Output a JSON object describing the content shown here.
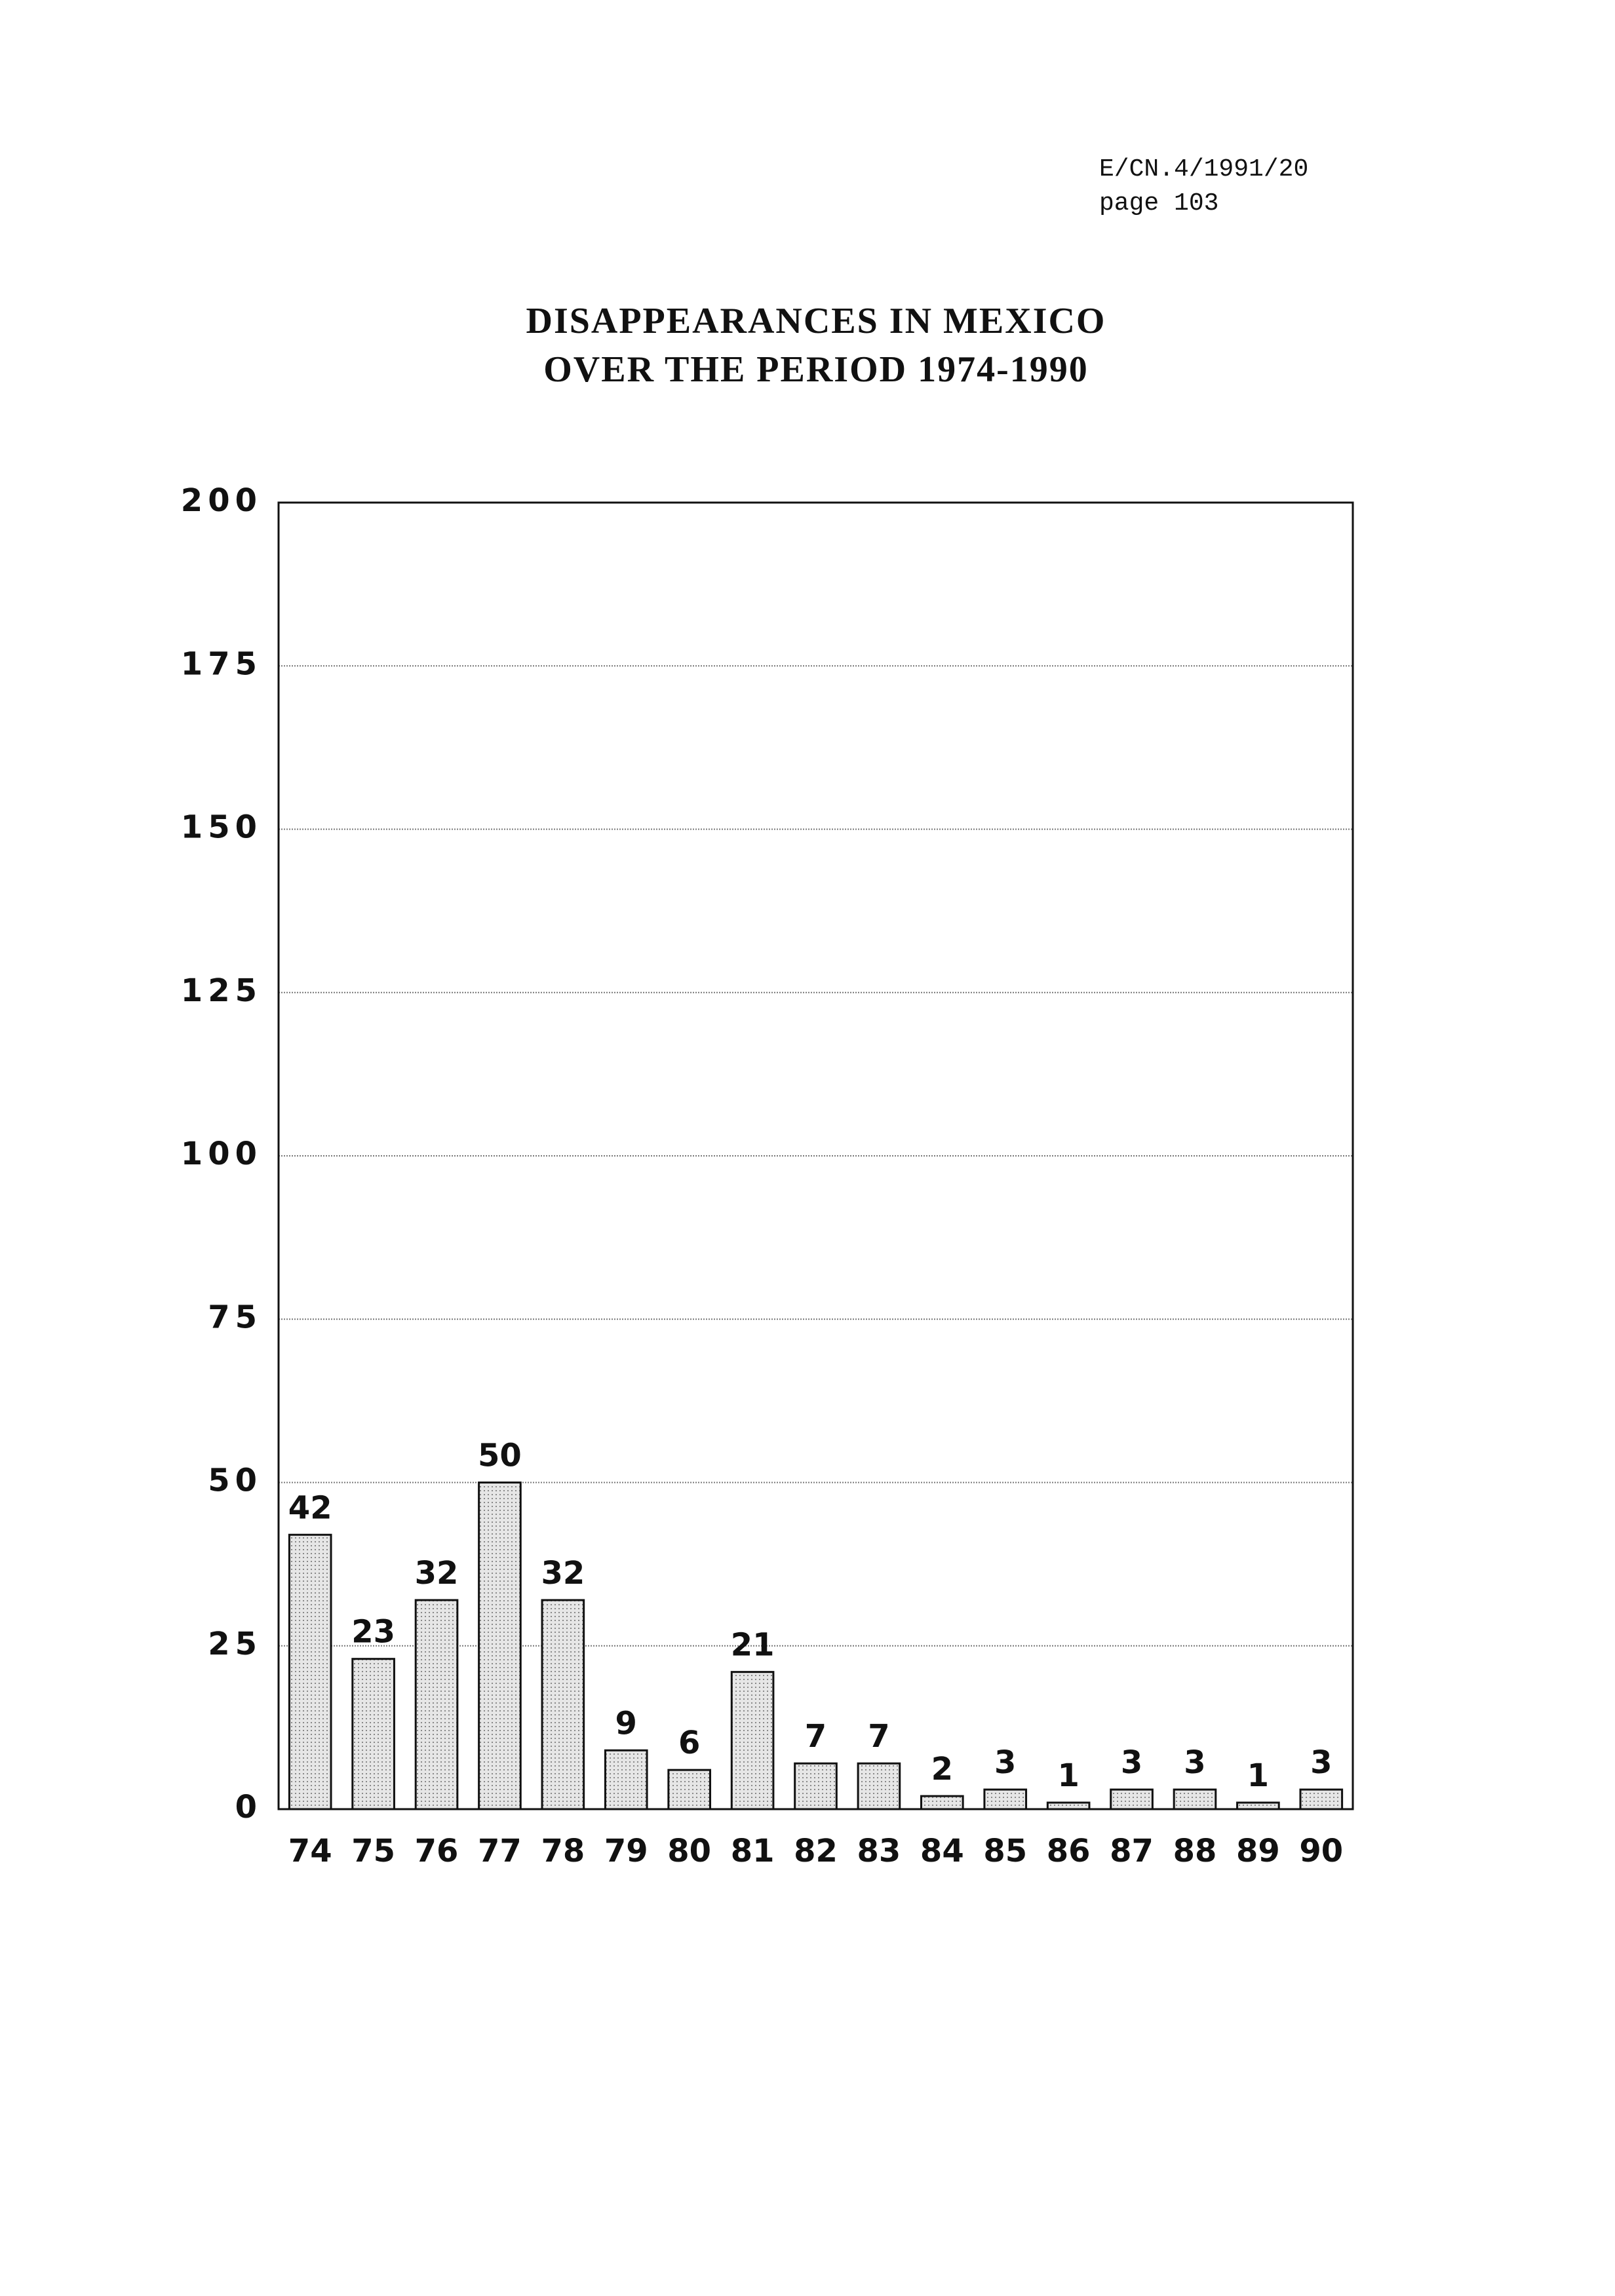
{
  "header": {
    "symbol": "E/CN.4/1991/20",
    "page": "page 103"
  },
  "chart_data": {
    "type": "bar",
    "title": [
      "DISAPPEARANCES IN MEXICO",
      "OVER THE PERIOD 1974-1990"
    ],
    "categories": [
      "74",
      "75",
      "76",
      "77",
      "78",
      "79",
      "80",
      "81",
      "82",
      "83",
      "84",
      "85",
      "86",
      "87",
      "88",
      "89",
      "90"
    ],
    "values": [
      42,
      23,
      32,
      50,
      32,
      9,
      6,
      21,
      7,
      7,
      2,
      3,
      1,
      3,
      3,
      1,
      3
    ],
    "color": "#d9d9d9",
    "ylim": [
      0,
      200
    ],
    "yticks": [
      0,
      25,
      50,
      75,
      100,
      125,
      150,
      175,
      200
    ],
    "grid": true
  }
}
